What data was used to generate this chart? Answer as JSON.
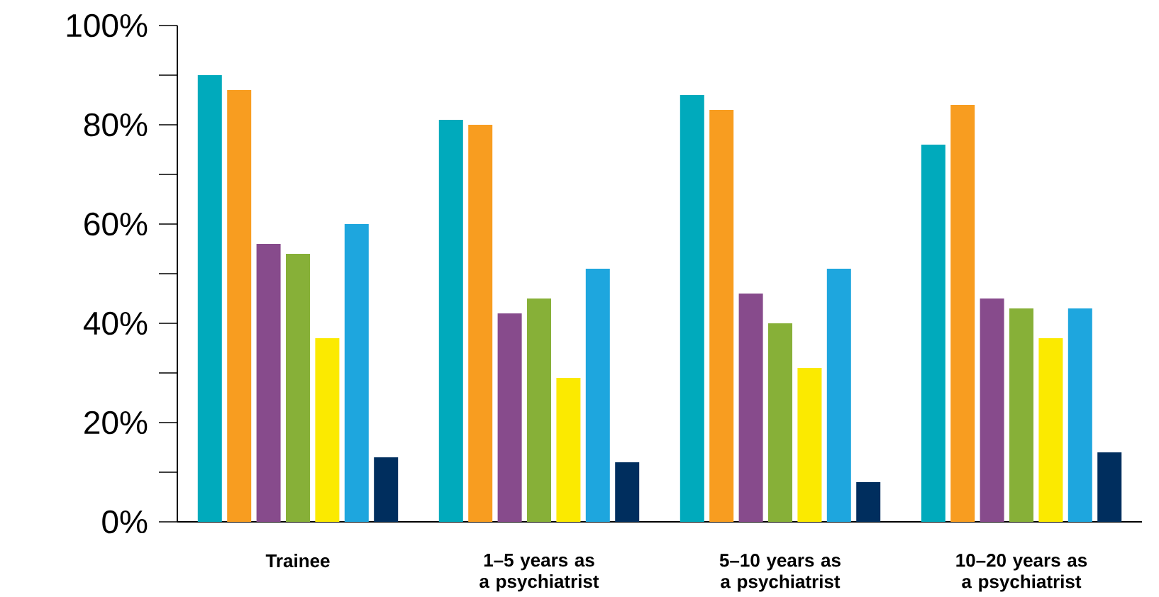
{
  "chart_data": {
    "type": "bar",
    "categories": [
      "Trainee",
      "1–5 years as a psychiatrist",
      "5–10 years as a psychiatrist",
      "10–20 years as a psychiatrist"
    ],
    "series": [
      {
        "color": "#00aabc",
        "values": [
          90,
          81,
          86,
          76
        ]
      },
      {
        "color": "#f89d20",
        "values": [
          87,
          80,
          83,
          84
        ]
      },
      {
        "color": "#874b8c",
        "values": [
          56,
          42,
          46,
          45
        ]
      },
      {
        "color": "#87b038",
        "values": [
          54,
          45,
          40,
          43
        ]
      },
      {
        "color": "#fbea00",
        "values": [
          37,
          29,
          31,
          37
        ]
      },
      {
        "color": "#1ea6de",
        "values": [
          60,
          51,
          51,
          43
        ]
      },
      {
        "color": "#002e5e",
        "values": [
          13,
          12,
          8,
          14
        ]
      }
    ],
    "ylim": [
      0,
      100
    ],
    "yticks": [
      {
        "value": 0,
        "label": "0%"
      },
      {
        "value": 10,
        "label": null
      },
      {
        "value": 20,
        "label": "20%"
      },
      {
        "value": 30,
        "label": null
      },
      {
        "value": 40,
        "label": "40%"
      },
      {
        "value": 50,
        "label": null
      },
      {
        "value": 60,
        "label": "60%"
      },
      {
        "value": 70,
        "label": null
      },
      {
        "value": 80,
        "label": "80%"
      },
      {
        "value": 90,
        "label": null
      },
      {
        "value": 100,
        "label": "100%"
      }
    ]
  }
}
